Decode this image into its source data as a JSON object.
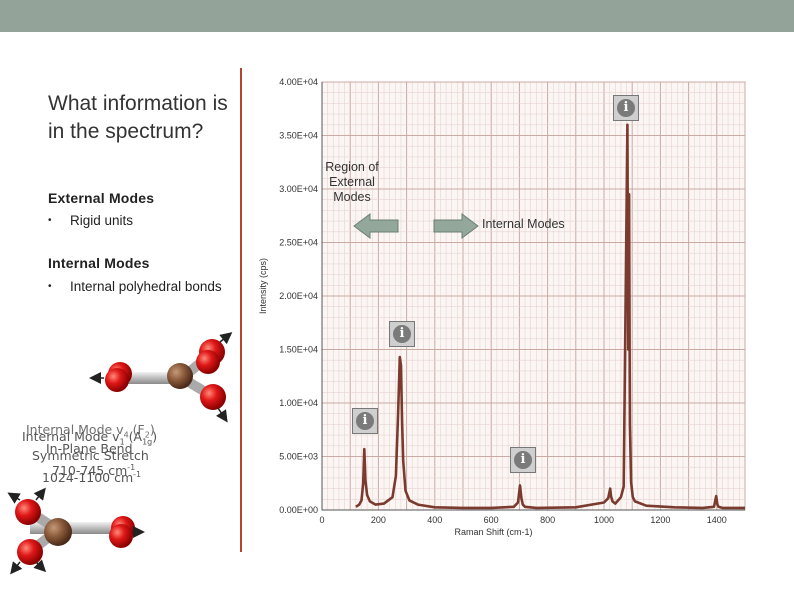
{
  "slide": {
    "title": "What information is in the spectrum?",
    "external_heading": "External Modes",
    "external_bullet": "Rigid units",
    "internal_heading": "Internal Modes",
    "internal_bullet": "Internal polyhedral bonds",
    "bullet_glyph": "•",
    "topbar_color": "#94a39a",
    "divider_color": "#b5452a"
  },
  "mode_captions": {
    "mode_a": {
      "line1_back": "Internal Mode v",
      "line1_front": "Internal Mode v",
      "sub_back": "4",
      "sub_front": "1",
      "sym_back": "(F",
      "sym_front": "(A",
      "sym_sub_back": "2",
      "sym_sub_front": "1g",
      "line2": "In-Plane Bend",
      "line3": "Symmetric Stretch",
      "line4": "710-745 cm",
      "line5": "1024-1100 cm",
      "unit_sup": "-1"
    }
  },
  "annotations": {
    "external_label": "Region of External Modes",
    "internal_label": "Internal Modes",
    "info_glyph": "i",
    "info_icon": "info-icon"
  },
  "chart_data": {
    "type": "line",
    "xlabel": "Raman Shift (cm-1)",
    "ylabel": "Intensity (cps)",
    "xlim": [
      0,
      1500
    ],
    "ylim": [
      0,
      40000
    ],
    "x_ticks": [
      0,
      200,
      400,
      600,
      800,
      1000,
      1200,
      1400
    ],
    "x_tick_labels": [
      "0",
      "200",
      "400",
      "600",
      "800",
      "1000",
      "1200",
      "1400"
    ],
    "y_ticks": [
      0,
      5000,
      10000,
      15000,
      20000,
      25000,
      30000,
      35000,
      40000
    ],
    "y_tick_labels": [
      "0.00E+00",
      "5.00E+03",
      "1.00E+04",
      "1.50E+04",
      "2.00E+04",
      "2.50E+04",
      "3.00E+04",
      "3.50E+04",
      "4.00E+04"
    ],
    "grid": true,
    "series": [
      {
        "color": "#7b3a2e",
        "x": [
          120,
          132,
          140,
          146,
          150,
          154,
          160,
          170,
          190,
          220,
          250,
          262,
          270,
          276,
          280,
          284,
          288,
          296,
          310,
          340,
          400,
          500,
          600,
          680,
          695,
          702,
          707,
          712,
          720,
          760,
          900,
          1000,
          1015,
          1022,
          1025,
          1030,
          1040,
          1060,
          1070,
          1080,
          1083,
          1086,
          1089,
          1092,
          1096,
          1102,
          1110,
          1150,
          1250,
          1350,
          1390,
          1398,
          1402,
          1406,
          1420,
          1500
        ],
        "y": [
          300,
          500,
          900,
          2500,
          5700,
          2800,
          1400,
          800,
          500,
          600,
          1200,
          3200,
          9000,
          14300,
          13500,
          8200,
          4600,
          1800,
          900,
          500,
          250,
          200,
          200,
          300,
          700,
          2300,
          1100,
          500,
          300,
          200,
          250,
          700,
          1100,
          2000,
          1300,
          800,
          600,
          1200,
          2200,
          28500,
          36000,
          15000,
          29500,
          8000,
          2600,
          1200,
          800,
          400,
          250,
          200,
          300,
          1300,
          500,
          300,
          200,
          200
        ]
      }
    ]
  }
}
